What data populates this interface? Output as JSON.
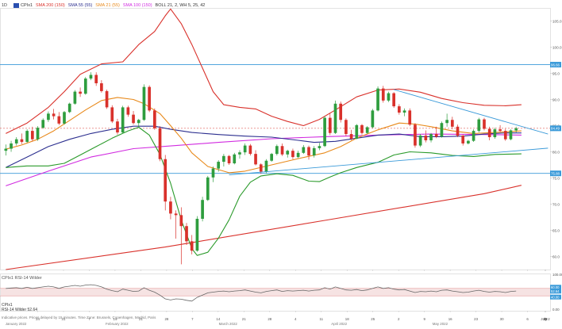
{
  "timeframe": "1D",
  "legend": [
    {
      "label": "CPIx1",
      "color": "#333333"
    },
    {
      "label": "SMA 200 (150)",
      "color": "#d9312b"
    },
    {
      "label": "SMA 55 (55)",
      "color": "#2c2f8f"
    },
    {
      "label": "SMA 21 (55)",
      "color": "#e8891a"
    },
    {
      "label": "SMA 100 (150)",
      "color": "#d12be0"
    },
    {
      "label": "BOLL 21, 2, WH 5, 25, 42",
      "color": "#333333"
    }
  ],
  "rsi_panel": {
    "legend": "CPIx1  RSI-14 Wilder",
    "symbol": "CPIx1",
    "value_line": "RSI-14 Wilder 52.64",
    "levels": [
      "60.00",
      "52.64",
      "40.00"
    ],
    "axis_labels": [
      "100.00",
      "0.00"
    ]
  },
  "footer_note": "Indicative prices. Prices delayed by 15 minutes. Time Zone: Brussels, Copenhagen, Madrid, Paris",
  "colors": {
    "up": "#2e9d3e",
    "down": "#d9312b",
    "sma200": "#d9312b",
    "sma55": "#2c2f8f",
    "sma21": "#e8891a",
    "sma100": "#d12be0",
    "boll_upper": "#d9312b",
    "boll_lower": "#2a9a2a",
    "trendline": "#3a9ad9",
    "dashed": "#d9312b",
    "axis_text": "#555555"
  },
  "chart_data": {
    "type": "candlestick",
    "x_tick_labels": [
      "24",
      "31",
      "7",
      "14",
      "21",
      "28",
      "7",
      "14",
      "21",
      "28",
      "4",
      "11",
      "18",
      "25",
      "2",
      "9",
      "16",
      "23",
      "30",
      "6",
      "13",
      "20",
      "27",
      "4",
      "July 2"
    ],
    "x_month_labels": [
      "January 2022",
      "February 2022",
      "March 2022",
      "April 2022",
      "May 2022",
      "June 2022"
    ],
    "y_tick_labels": [
      "105.0",
      "100.0",
      "95.0",
      "90.0",
      "85.0",
      "80.0",
      "75.0",
      "70.0",
      "65.0",
      "60.0"
    ],
    "ylim": [
      57.5,
      107.5
    ],
    "price_labels": [
      {
        "text": "96.66",
        "value": 96.66,
        "color": "#3a9ad9"
      },
      {
        "text": "84.49",
        "value": 84.49,
        "color": "#3a9ad9"
      },
      {
        "text": "75.88",
        "value": 75.88,
        "color": "#3a9ad9"
      }
    ],
    "dashed_level": 84.49,
    "horizontal_lines": [
      96.66,
      75.88
    ],
    "ohlc": [
      [
        80.2,
        81.4,
        79.3,
        80.6
      ],
      [
        80.6,
        82.1,
        80.0,
        81.6
      ],
      [
        81.6,
        82.8,
        81.2,
        82.4
      ],
      [
        82.4,
        83.5,
        81.5,
        81.9
      ],
      [
        81.9,
        84.3,
        81.7,
        84.0
      ],
      [
        84.0,
        84.8,
        82.0,
        82.4
      ],
      [
        82.4,
        84.9,
        82.1,
        84.6
      ],
      [
        84.6,
        86.4,
        84.4,
        86.1
      ],
      [
        86.1,
        87.7,
        85.7,
        87.3
      ],
      [
        87.3,
        88.2,
        86.2,
        86.8
      ],
      [
        86.8,
        87.6,
        85.1,
        85.4
      ],
      [
        85.4,
        87.8,
        85.2,
        87.6
      ],
      [
        87.6,
        89.4,
        87.4,
        89.2
      ],
      [
        89.2,
        91.8,
        89.0,
        91.5
      ],
      [
        91.5,
        92.3,
        90.5,
        91.1
      ],
      [
        91.1,
        94.3,
        90.9,
        94.0
      ],
      [
        94.0,
        95.2,
        93.7,
        94.7
      ],
      [
        94.7,
        95.2,
        92.6,
        93.1
      ],
      [
        93.1,
        93.7,
        91.3,
        91.6
      ],
      [
        91.6,
        91.9,
        88.2,
        88.5
      ],
      [
        88.5,
        88.9,
        85.5,
        85.8
      ],
      [
        85.8,
        86.3,
        83.3,
        83.7
      ],
      [
        83.7,
        88.8,
        83.5,
        88.5
      ],
      [
        88.5,
        88.8,
        86.7,
        87.1
      ],
      [
        87.1,
        87.8,
        85.2,
        85.5
      ],
      [
        85.5,
        86.3,
        84.6,
        86.1
      ],
      [
        86.1,
        92.9,
        85.9,
        92.4
      ],
      [
        92.4,
        92.7,
        87.6,
        87.9
      ],
      [
        87.9,
        88.3,
        84.2,
        84.5
      ],
      [
        84.5,
        84.9,
        78.2,
        78.6
      ],
      [
        78.6,
        79.4,
        68.8,
        70.5
      ],
      [
        70.5,
        71.4,
        67.1,
        68.2
      ],
      [
        68.2,
        68.8,
        63.4,
        67.9
      ],
      [
        67.9,
        69.4,
        58.5,
        65.8
      ],
      [
        65.8,
        66.4,
        62.2,
        62.9
      ],
      [
        62.9,
        64.1,
        60.4,
        61.1
      ],
      [
        61.1,
        67.7,
        60.9,
        67.2
      ],
      [
        67.2,
        71.4,
        66.7,
        70.8
      ],
      [
        70.8,
        75.4,
        70.6,
        75.1
      ],
      [
        75.1,
        77.2,
        74.2,
        76.8
      ],
      [
        76.8,
        78.4,
        76.2,
        78.1
      ],
      [
        78.1,
        79.6,
        77.2,
        79.2
      ],
      [
        79.2,
        79.4,
        77.5,
        77.8
      ],
      [
        77.8,
        79.8,
        77.6,
        79.5
      ],
      [
        79.5,
        80.3,
        78.7,
        79.9
      ],
      [
        79.9,
        81.6,
        79.4,
        81.2
      ],
      [
        81.2,
        81.5,
        79.3,
        79.6
      ],
      [
        79.6,
        80.3,
        77.4,
        77.6
      ],
      [
        77.6,
        77.8,
        75.8,
        76.2
      ],
      [
        76.2,
        78.6,
        75.9,
        78.3
      ],
      [
        78.3,
        79.8,
        78.1,
        79.6
      ],
      [
        79.6,
        81.4,
        79.3,
        81.1
      ],
      [
        81.1,
        81.6,
        79.2,
        79.5
      ],
      [
        79.5,
        80.4,
        78.9,
        80.2
      ],
      [
        80.2,
        80.6,
        78.6,
        79.0
      ],
      [
        79.0,
        80.2,
        78.8,
        79.8
      ],
      [
        79.8,
        81.3,
        79.6,
        80.9
      ],
      [
        80.9,
        81.2,
        78.5,
        79.3
      ],
      [
        79.3,
        81.1,
        78.9,
        80.7
      ],
      [
        80.7,
        81.7,
        80.3,
        81.1
      ],
      [
        81.1,
        86.8,
        80.9,
        86.5
      ],
      [
        86.5,
        87.3,
        83.2,
        83.6
      ],
      [
        83.6,
        89.8,
        83.4,
        89.2
      ],
      [
        89.2,
        89.6,
        85.6,
        86.1
      ],
      [
        86.1,
        86.4,
        83.0,
        83.4
      ],
      [
        83.4,
        84.2,
        82.2,
        82.5
      ],
      [
        82.5,
        85.3,
        82.4,
        85.1
      ],
      [
        85.1,
        85.3,
        83.3,
        83.6
      ],
      [
        83.6,
        84.9,
        83.4,
        84.7
      ],
      [
        84.7,
        88.2,
        84.5,
        87.9
      ],
      [
        87.9,
        92.5,
        87.7,
        92.1
      ],
      [
        92.1,
        92.6,
        89.4,
        89.8
      ],
      [
        89.8,
        91.5,
        89.5,
        91.2
      ],
      [
        91.2,
        91.4,
        88.4,
        88.7
      ],
      [
        88.7,
        89.1,
        87.1,
        87.5
      ],
      [
        87.5,
        88.3,
        86.8,
        87.9
      ],
      [
        87.9,
        88.3,
        84.9,
        85.2
      ],
      [
        85.2,
        85.5,
        80.8,
        81.2
      ],
      [
        81.2,
        83.4,
        80.9,
        83.1
      ],
      [
        83.1,
        84.1,
        81.8,
        82.2
      ],
      [
        82.2,
        83.6,
        81.8,
        83.4
      ],
      [
        83.4,
        84.8,
        82.6,
        82.9
      ],
      [
        82.9,
        85.8,
        82.7,
        85.5
      ],
      [
        85.5,
        87.3,
        84.8,
        86.1
      ],
      [
        86.1,
        86.7,
        84.3,
        84.8
      ],
      [
        84.8,
        85.2,
        82.8,
        83.1
      ],
      [
        83.1,
        83.3,
        81.2,
        81.6
      ],
      [
        81.6,
        82.3,
        81.4,
        82.1
      ],
      [
        82.1,
        84.3,
        81.9,
        84.0
      ],
      [
        84.0,
        86.5,
        83.7,
        86.2
      ],
      [
        86.2,
        86.5,
        84.1,
        84.4
      ],
      [
        84.4,
        84.8,
        82.2,
        82.8
      ],
      [
        82.8,
        84.6,
        82.5,
        84.3
      ],
      [
        84.3,
        85.1,
        83.8,
        84.0
      ],
      [
        84.0,
        84.4,
        82.1,
        82.4
      ],
      [
        82.4,
        84.3,
        82.2,
        84.1
      ],
      [
        84.1,
        84.8,
        83.7,
        84.5
      ]
    ],
    "series": [
      {
        "name": "SMA 200 (150)",
        "color": "#d9312b",
        "points": [
          [
            0,
            57.5
          ],
          [
            30,
            61.8
          ],
          [
            60,
            66.9
          ],
          [
            90,
            72.0
          ],
          [
            97,
            73.6
          ]
        ]
      },
      {
        "name": "SMA 100 (150)",
        "color": "#d12be0",
        "points": [
          [
            0,
            73.5
          ],
          [
            8,
            76.3
          ],
          [
            16,
            79.0
          ],
          [
            24,
            80.6
          ],
          [
            32,
            81.2
          ],
          [
            40,
            81.8
          ],
          [
            50,
            82.5
          ],
          [
            60,
            82.9
          ],
          [
            70,
            83.2
          ],
          [
            80,
            83.4
          ],
          [
            90,
            83.3
          ],
          [
            97,
            83.2
          ]
        ]
      },
      {
        "name": "SMA 55 (55)",
        "color": "#2c2f8f",
        "points": [
          [
            0,
            77.0
          ],
          [
            4,
            79.0
          ],
          [
            8,
            81.0
          ],
          [
            12,
            82.4
          ],
          [
            16,
            83.5
          ],
          [
            20,
            84.3
          ],
          [
            24,
            84.9
          ],
          [
            28,
            84.9
          ],
          [
            31,
            84.3
          ],
          [
            35,
            83.7
          ],
          [
            40,
            83.3
          ],
          [
            45,
            83.0
          ],
          [
            50,
            82.8
          ],
          [
            55,
            82.2
          ],
          [
            58,
            81.8
          ],
          [
            62,
            82.0
          ],
          [
            66,
            82.6
          ],
          [
            70,
            83.2
          ],
          [
            74,
            83.4
          ],
          [
            78,
            82.9
          ],
          [
            82,
            82.9
          ],
          [
            86,
            83.0
          ],
          [
            90,
            83.4
          ],
          [
            94,
            83.6
          ],
          [
            97,
            83.6
          ]
        ]
      },
      {
        "name": "SMA 21 (55)",
        "color": "#e8891a",
        "points": [
          [
            0,
            80.5
          ],
          [
            3,
            81.3
          ],
          [
            6,
            82.4
          ],
          [
            9,
            84.0
          ],
          [
            12,
            86.0
          ],
          [
            15,
            88.0
          ],
          [
            18,
            89.8
          ],
          [
            21,
            90.4
          ],
          [
            24,
            90.0
          ],
          [
            26,
            89.2
          ],
          [
            29,
            87.3
          ],
          [
            31,
            85.0
          ],
          [
            33,
            82.6
          ],
          [
            35,
            79.8
          ],
          [
            38,
            77.2
          ],
          [
            42,
            76.0
          ],
          [
            45,
            76.3
          ],
          [
            50,
            77.5
          ],
          [
            55,
            78.7
          ],
          [
            60,
            79.8
          ],
          [
            63,
            81.0
          ],
          [
            66,
            82.6
          ],
          [
            70,
            84.2
          ],
          [
            74,
            85.5
          ],
          [
            77,
            85.3
          ],
          [
            80,
            84.8
          ],
          [
            84,
            84.0
          ],
          [
            88,
            83.5
          ],
          [
            92,
            83.7
          ],
          [
            97,
            84.0
          ]
        ]
      },
      {
        "name": "Boll Upper",
        "color": "#d9312b",
        "points": [
          [
            0,
            83.5
          ],
          [
            4,
            85.5
          ],
          [
            8,
            88.5
          ],
          [
            11,
            91.5
          ],
          [
            14,
            94.8
          ],
          [
            18,
            96.8
          ],
          [
            22,
            97.2
          ],
          [
            25,
            100.5
          ],
          [
            28,
            103.0
          ],
          [
            30,
            106.0
          ],
          [
            31,
            107.3
          ],
          [
            33,
            104.5
          ],
          [
            35,
            100.5
          ],
          [
            37,
            96.0
          ],
          [
            39,
            91.5
          ],
          [
            41,
            89.0
          ],
          [
            44,
            88.5
          ],
          [
            47,
            88.2
          ],
          [
            50,
            86.8
          ],
          [
            53,
            85.8
          ],
          [
            56,
            85.0
          ],
          [
            59,
            86.2
          ],
          [
            62,
            88.0
          ],
          [
            66,
            90.5
          ],
          [
            70,
            91.8
          ],
          [
            74,
            92.0
          ],
          [
            78,
            91.4
          ],
          [
            82,
            90.2
          ],
          [
            86,
            89.4
          ],
          [
            90,
            88.9
          ],
          [
            94,
            88.8
          ],
          [
            97,
            89.0
          ]
        ]
      },
      {
        "name": "Boll Lower",
        "color": "#2a9a2a",
        "points": [
          [
            0,
            77.0
          ],
          [
            4,
            77.3
          ],
          [
            8,
            77.3
          ],
          [
            11,
            77.8
          ],
          [
            14,
            79.4
          ],
          [
            17,
            81.0
          ],
          [
            20,
            82.6
          ],
          [
            23,
            84.0
          ],
          [
            25,
            84.7
          ],
          [
            27,
            83.2
          ],
          [
            29,
            79.5
          ],
          [
            31,
            74.0
          ],
          [
            33,
            67.0
          ],
          [
            35,
            61.5
          ],
          [
            36,
            60.2
          ],
          [
            38,
            60.8
          ],
          [
            40,
            63.5
          ],
          [
            42,
            67.0
          ],
          [
            44,
            71.5
          ],
          [
            46,
            74.2
          ],
          [
            48,
            75.4
          ],
          [
            51,
            75.8
          ],
          [
            54,
            75.5
          ],
          [
            57,
            74.4
          ],
          [
            59,
            74.3
          ],
          [
            61,
            75.2
          ],
          [
            63,
            76.0
          ],
          [
            66,
            77.0
          ],
          [
            70,
            78.0
          ],
          [
            73,
            79.4
          ],
          [
            76,
            80.0
          ],
          [
            80,
            79.8
          ],
          [
            84,
            79.3
          ],
          [
            88,
            79.1
          ],
          [
            92,
            79.5
          ],
          [
            97,
            79.6
          ]
        ]
      }
    ],
    "trendlines": [
      {
        "from": [
          73,
          91.9
        ],
        "to": [
          102,
          83.4
        ]
      },
      {
        "from": [
          42,
          75.6
        ],
        "to": [
          102,
          80.7
        ]
      }
    ],
    "rsi": {
      "ylim": [
        0,
        100
      ],
      "bands": [
        40,
        60
      ],
      "values": [
        60,
        61,
        62,
        60,
        63,
        60,
        62,
        64,
        66,
        64,
        60,
        64,
        66,
        68,
        66,
        69,
        70,
        68,
        64,
        58,
        54,
        51,
        58,
        55,
        52,
        53,
        62,
        55,
        50,
        42,
        32,
        29,
        32,
        31,
        28,
        26,
        36,
        42,
        48,
        50,
        52,
        53,
        51,
        53,
        54,
        56,
        53,
        50,
        48,
        52,
        54,
        56,
        52,
        54,
        53,
        54,
        55,
        53,
        55,
        56,
        62,
        58,
        64,
        60,
        56,
        55,
        57,
        54,
        56,
        60,
        64,
        60,
        62,
        58,
        56,
        57,
        53,
        49,
        52,
        51,
        53,
        51,
        55,
        56,
        53,
        51,
        49,
        50,
        53,
        55,
        52,
        50,
        52,
        51,
        49,
        52,
        53
      ]
    }
  }
}
